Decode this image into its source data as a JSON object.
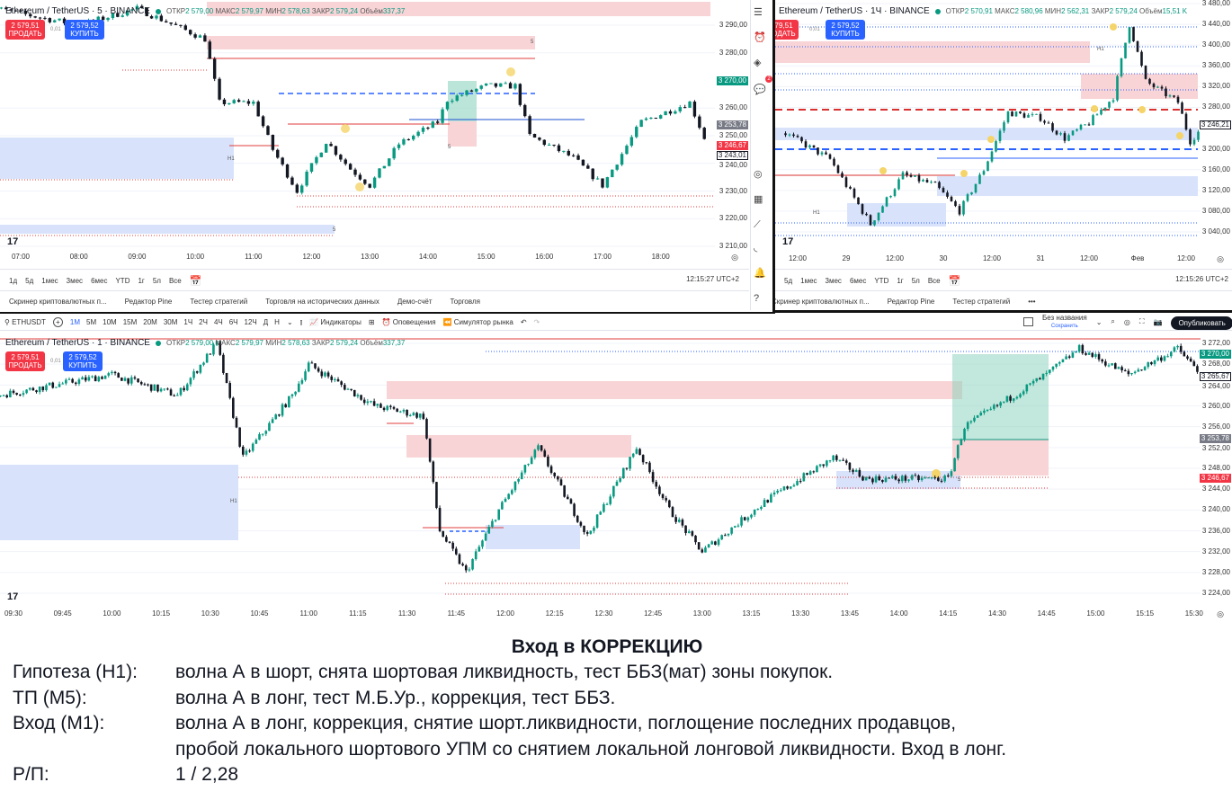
{
  "colors": {
    "up": "#089981",
    "down": "#131722",
    "sell": "#f23645",
    "buy": "#2962ff",
    "supply_zone": "#f8d4d6",
    "demand_zone": "#d8e3fb"
  },
  "chart5": {
    "symbol": "Ethereum / TetherUS · 5 · BINANCE",
    "ohlc": {
      "o_l": "ОТКР",
      "o": "2 579,00",
      "h_l": "МАКС",
      "h": "2 579,97",
      "l_l": "МИН",
      "l": "2 578,63",
      "c_l": "ЗАКР",
      "c": "2 579,24",
      "v_l": "Объём",
      "v": "337,37"
    },
    "sell_price": "2 579,51",
    "sell_label": "ПРОДАТЬ",
    "spread": "0,01",
    "buy_price": "2 579,52",
    "buy_label": "КУПИТЬ",
    "price_ticks": [
      "3 290,00",
      "3 280,00",
      "3 260,00",
      "3 250,00",
      "3 240,00",
      "3 230,00",
      "3 220,00",
      "3 210,00"
    ],
    "price_tags": [
      {
        "text": "3 270,00",
        "color": "#089981"
      },
      {
        "text": "3 253,78",
        "color": "#787b86"
      },
      {
        "text": "3 246,67",
        "color": "#f23645"
      },
      {
        "text": "3 243,01",
        "color": "#ffffff"
      }
    ],
    "time_ticks": [
      "07:00",
      "08:00",
      "09:00",
      "10:00",
      "11:00",
      "12:00",
      "13:00",
      "14:00",
      "15:00",
      "16:00",
      "17:00",
      "18:00"
    ],
    "ranges": [
      "1д",
      "5д",
      "1мес",
      "3мес",
      "6мес",
      "YTD",
      "1г",
      "5л",
      "Все"
    ],
    "clock": "12:15:27 UTC+2",
    "tabs": [
      "Скринер криптовалютных п...",
      "Редактор Pine",
      "Тестер стратегий",
      "Торговля на исторических данных",
      "Демо-счёт",
      "Торговля"
    ],
    "zone_labels": [
      "H1",
      "5",
      "5",
      "5"
    ],
    "notif_count": "2",
    "price_path": [
      [
        "06:20",
        3297
      ],
      [
        "08:00",
        3290
      ],
      [
        "09:00",
        3296
      ],
      [
        "10:10",
        3285
      ],
      [
        "10:25",
        3262
      ],
      [
        "11:00",
        3262
      ],
      [
        "11:20",
        3245
      ],
      [
        "11:45",
        3230
      ],
      [
        "12:15",
        3248
      ],
      [
        "12:40",
        3238
      ],
      [
        "13:00",
        3232
      ],
      [
        "13:30",
        3247
      ],
      [
        "14:10",
        3255
      ],
      [
        "14:20",
        3263
      ],
      [
        "15:00",
        3268
      ],
      [
        "15:30",
        3268
      ],
      [
        "15:45",
        3250
      ],
      [
        "16:30",
        3242
      ],
      [
        "17:00",
        3232
      ],
      [
        "17:40",
        3255
      ],
      [
        "18:30",
        3262
      ],
      [
        "18:50",
        3245
      ]
    ]
  },
  "chart1h": {
    "symbol": "Ethereum / TetherUS · 1Ч · BINANCE",
    "ohlc": {
      "o_l": "ОТКР",
      "o": "2 570,91",
      "h_l": "МАКС",
      "h": "2 580,96",
      "l_l": "МИН",
      "l": "2 562,31",
      "c_l": "ЗАКР",
      "c": "2 579,24",
      "v_l": "Объём",
      "v": "15,51 K"
    },
    "sell_price": "2 579,51",
    "sell_label": "ПРОДАТЬ",
    "spread": "0,01",
    "buy_price": "2 579,52",
    "buy_label": "КУПИТЬ",
    "price_ticks": [
      "3 480,00",
      "3 440,00",
      "3 400,00",
      "3 360,00",
      "3 320,00",
      "3 280,00",
      "3 200,00",
      "3 160,00",
      "3 120,00",
      "3 080,00",
      "3 040,00"
    ],
    "price_tags": [
      {
        "text": "3 246,21",
        "color": "#ffffff"
      }
    ],
    "time_ticks": [
      "12:00",
      "29",
      "12:00",
      "30",
      "12:00",
      "31",
      "12:00",
      "Фев",
      "12:00"
    ],
    "ranges": [
      "5д",
      "1мес",
      "3мес",
      "6мес",
      "YTD",
      "1г",
      "5л",
      "Все"
    ],
    "clock": "12:15:26 UTC+2",
    "tabs": [
      "Скринер криптовалютных п...",
      "Редактор Pine",
      "Тестер стратегий"
    ],
    "more": "•••",
    "zone_labels": [
      "H1",
      "H1"
    ],
    "price_path": [
      [
        "28 09:00",
        3230
      ],
      [
        "28 20:00",
        3180
      ],
      [
        "29 06:00",
        3055
      ],
      [
        "29 14:00",
        3150
      ],
      [
        "29 22:00",
        3130
      ],
      [
        "30 04:00",
        3080
      ],
      [
        "30 10:00",
        3160
      ],
      [
        "30 16:00",
        3270
      ],
      [
        "31 00:00",
        3260
      ],
      [
        "31 06:00",
        3220
      ],
      [
        "31 12:00",
        3250
      ],
      [
        "31 18:00",
        3300
      ],
      [
        "31 22:00",
        3440
      ],
      [
        "32 02:00",
        3330
      ],
      [
        "32 06:00",
        3310
      ],
      [
        "32 10:00",
        3290
      ],
      [
        "32 13:00",
        3215
      ],
      [
        "32 17:00",
        3250
      ]
    ]
  },
  "toolbar": {
    "symbol": "ETHUSDT",
    "intervals": [
      "1М",
      "5М",
      "10М",
      "15М",
      "20М",
      "30М",
      "1Ч",
      "2Ч",
      "4Ч",
      "6Ч",
      "12Ч",
      "Д",
      "Н"
    ],
    "indicators": "Индикаторы",
    "alerts": "Оповещения",
    "replay": "Симулятор рынка",
    "layout_name": "Без названия",
    "save": "Сохранить",
    "publish": "Опубликовать"
  },
  "chart1m": {
    "symbol": "Ethereum / TetherUS · 1 · BINANCE",
    "ohlc": {
      "o_l": "ОТКР",
      "o": "2 579,00",
      "h_l": "МАКС",
      "h": "2 579,97",
      "l_l": "МИН",
      "l": "2 578,63",
      "c_l": "ЗАКР",
      "c": "2 579,24",
      "v_l": "Объём",
      "v": "337,37"
    },
    "sell_price": "2 579,51",
    "sell_label": "ПРОДАТЬ",
    "spread": "0,01",
    "buy_price": "2 579,52",
    "buy_label": "КУПИТЬ",
    "price_ticks": [
      "3 272,00",
      "3 268,00",
      "3 264,00",
      "3 260,00",
      "3 256,00",
      "3 252,00",
      "3 248,00",
      "3 244,00",
      "3 240,00",
      "3 236,00",
      "3 232,00",
      "3 228,00",
      "3 224,00"
    ],
    "price_tags": [
      {
        "text": "3 270,00",
        "color": "#089981"
      },
      {
        "text": "3 265,67",
        "color": "#ffffff"
      },
      {
        "text": "3 253,78",
        "color": "#787b86"
      },
      {
        "text": "3 246,67",
        "color": "#f23645"
      }
    ],
    "time_ticks": [
      "09:30",
      "09:45",
      "10:00",
      "10:15",
      "10:30",
      "10:45",
      "11:00",
      "11:15",
      "11:30",
      "11:45",
      "12:00",
      "12:15",
      "12:30",
      "12:45",
      "13:00",
      "13:15",
      "13:30",
      "13:45",
      "14:00",
      "14:15",
      "14:30",
      "14:45",
      "15:00",
      "15:15",
      "15:30"
    ],
    "zone_labels": [
      "H1",
      "5"
    ],
    "price_path": [
      [
        "09:25",
        3262
      ],
      [
        "10:00",
        3266
      ],
      [
        "10:20",
        3262
      ],
      [
        "10:32",
        3272
      ],
      [
        "10:40",
        3250
      ],
      [
        "10:55",
        3262
      ],
      [
        "11:00",
        3268
      ],
      [
        "11:20",
        3260
      ],
      [
        "11:35",
        3258
      ],
      [
        "11:40",
        3236
      ],
      [
        "11:48",
        3228
      ],
      [
        "11:58",
        3240
      ],
      [
        "12:10",
        3252
      ],
      [
        "12:25",
        3235
      ],
      [
        "12:40",
        3252
      ],
      [
        "12:50",
        3240
      ],
      [
        "13:00",
        3232
      ],
      [
        "13:20",
        3242
      ],
      [
        "13:40",
        3250
      ],
      [
        "13:50",
        3246
      ],
      [
        "14:15",
        3246
      ],
      [
        "14:20",
        3256
      ],
      [
        "14:45",
        3266
      ],
      [
        "14:55",
        3271
      ],
      [
        "15:10",
        3266
      ],
      [
        "15:25",
        3271
      ],
      [
        "15:35",
        3264
      ]
    ]
  },
  "notes": {
    "title": "Вход в КОРРЕКЦИЮ",
    "rows": [
      {
        "k": "Гипотеза (Н1):",
        "v": "волна А в шорт, снята шортовая ликвидность, тест ББЗ(мат) зоны покупок."
      },
      {
        "k": "ТП (М5):",
        "v": "волна А в лонг, тест М.Б.Ур., коррекция, тест ББЗ."
      },
      {
        "k": "Вход (М1):",
        "v": "волна А в лонг, коррекция, снятие шорт.ликвидности, поглощение последних продавцов,"
      },
      {
        "k": "",
        "v": "пробой локального шортового УПМ со снятием локальной лонговой ликвидности. Вход в лонг."
      },
      {
        "k": "Р/П:",
        "v": "1 / 2,28"
      }
    ]
  }
}
